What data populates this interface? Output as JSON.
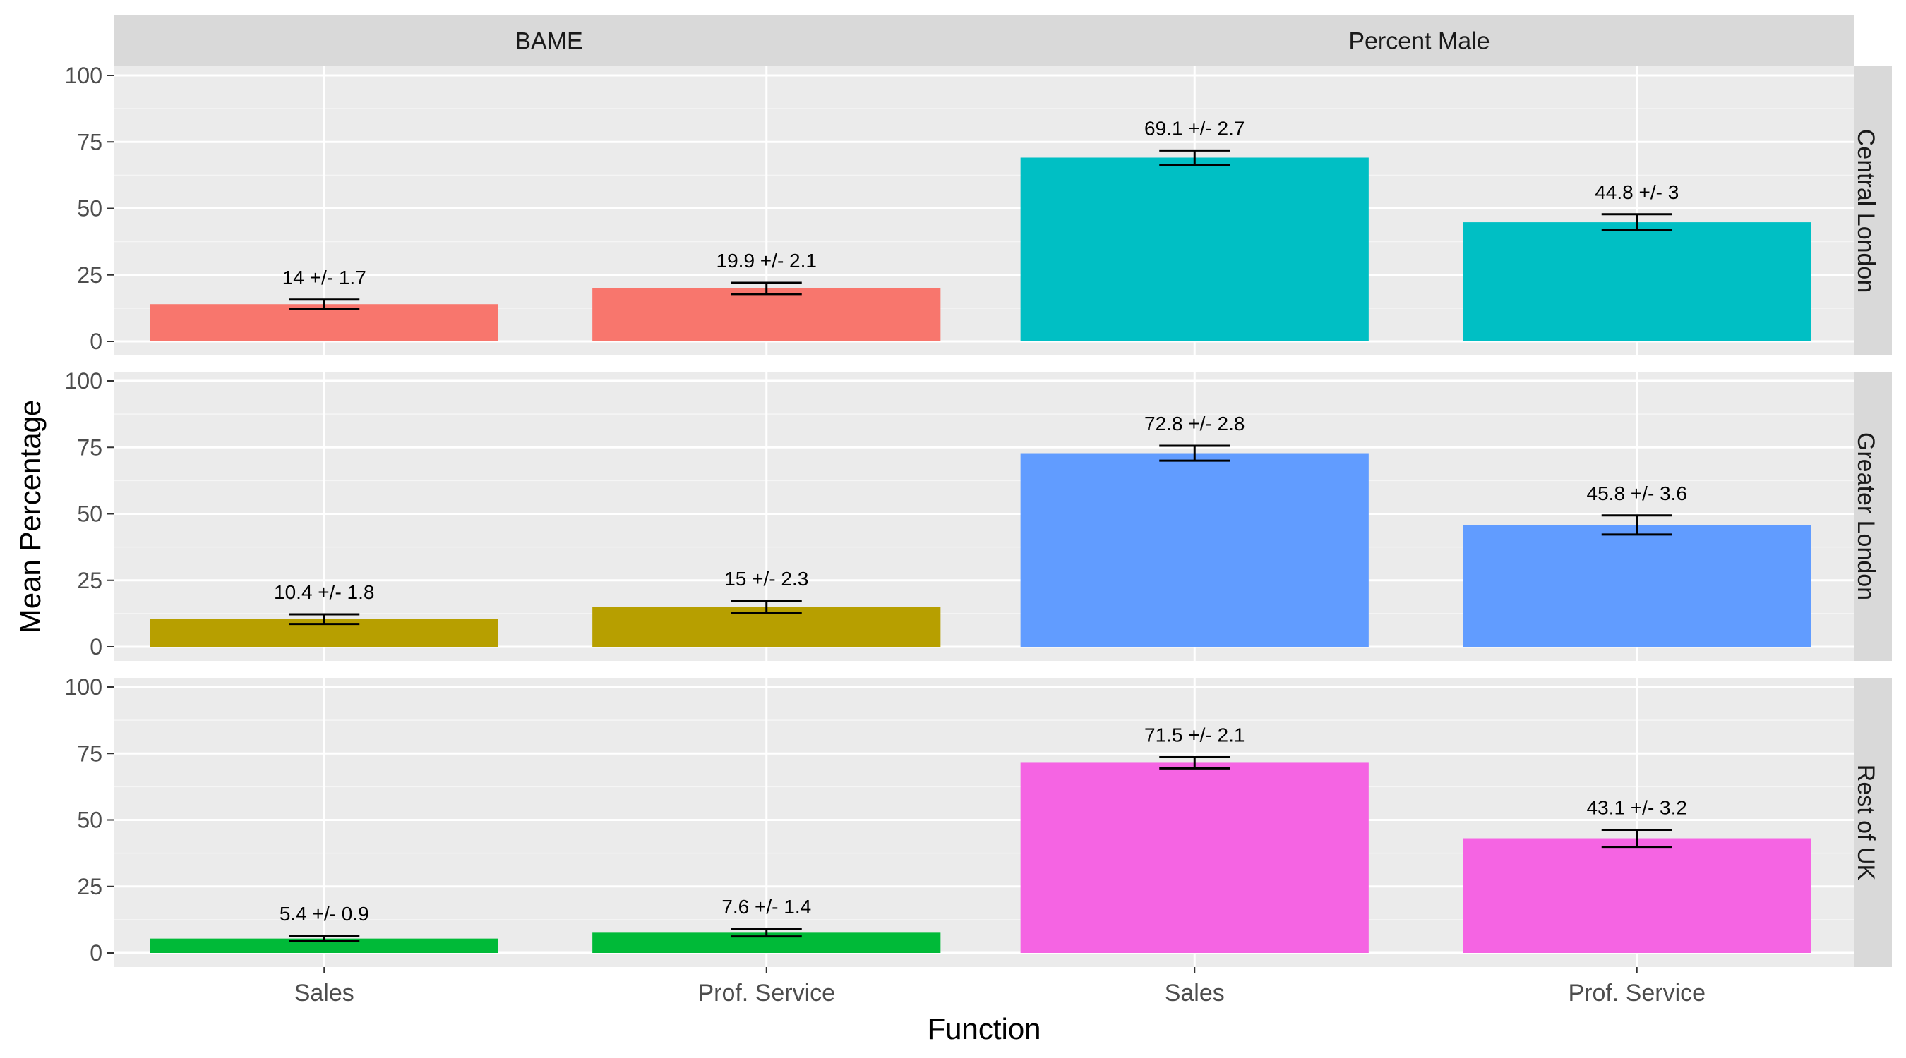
{
  "chart_data": {
    "type": "bar",
    "xlabel": "Function",
    "ylabel": "Mean Percentage",
    "ylim": [
      0,
      100
    ],
    "yticks": [
      0,
      25,
      50,
      75,
      100
    ],
    "categories": [
      "Sales",
      "Prof. Service"
    ],
    "col_facets": [
      "BAME",
      "Percent Male"
    ],
    "row_facets": [
      "Central London",
      "Greater London",
      "Rest of UK"
    ],
    "colors": {
      "BAME|Central London": "#F8766D",
      "BAME|Greater London": "#B79F00",
      "BAME|Rest of UK": "#00BA38",
      "Percent Male|Central London": "#00BFC4",
      "Percent Male|Greater London": "#619CFF",
      "Percent Male|Rest of UK": "#F564E3"
    },
    "panels": [
      {
        "col": "BAME",
        "row": "Central London",
        "values": [
          14,
          19.9
        ],
        "errors": [
          1.7,
          2.1
        ],
        "labels": [
          "14 +/- 1.7",
          "19.9 +/- 2.1"
        ]
      },
      {
        "col": "Percent Male",
        "row": "Central London",
        "values": [
          69.1,
          44.8
        ],
        "errors": [
          2.7,
          3
        ],
        "labels": [
          "69.1 +/- 2.7",
          "44.8 +/- 3"
        ]
      },
      {
        "col": "BAME",
        "row": "Greater London",
        "values": [
          10.4,
          15
        ],
        "errors": [
          1.8,
          2.3
        ],
        "labels": [
          "10.4 +/- 1.8",
          "15 +/- 2.3"
        ]
      },
      {
        "col": "Percent Male",
        "row": "Greater London",
        "values": [
          72.8,
          45.8
        ],
        "errors": [
          2.8,
          3.6
        ],
        "labels": [
          "72.8 +/- 2.8",
          "45.8 +/- 3.6"
        ]
      },
      {
        "col": "BAME",
        "row": "Rest of UK",
        "values": [
          5.4,
          7.6
        ],
        "errors": [
          0.9,
          1.4
        ],
        "labels": [
          "5.4 +/- 0.9",
          "7.6 +/- 1.4"
        ]
      },
      {
        "col": "Percent Male",
        "row": "Rest of UK",
        "values": [
          71.5,
          43.1
        ],
        "errors": [
          2.1,
          3.2
        ],
        "labels": [
          "71.5 +/- 2.1",
          "43.1 +/- 3.2"
        ]
      }
    ],
    "legend": "none",
    "grid": true
  }
}
